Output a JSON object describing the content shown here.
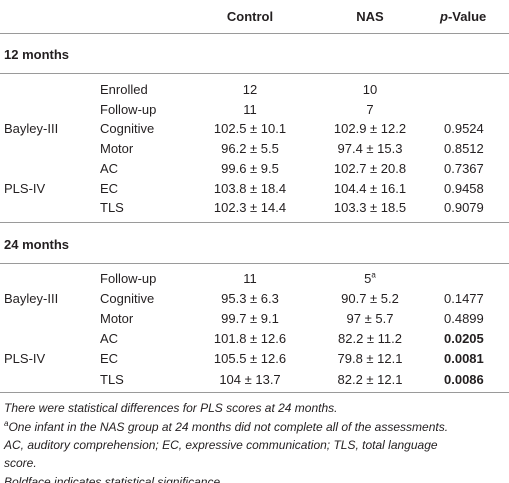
{
  "header": {
    "control": "Control",
    "nas": "NAS",
    "p_italic": "p",
    "p_rest": "-Value"
  },
  "sections": [
    {
      "title": "12 months",
      "rows": [
        {
          "measure": "Enrolled",
          "control": "12",
          "nas": "10"
        },
        {
          "measure": "Follow-up",
          "control": "11",
          "nas": "7"
        },
        {
          "group": "Bayley-III",
          "measure": "Cognitive",
          "control": "102.5 ± 10.1",
          "nas": "102.9 ± 12.2",
          "p": "0.9524",
          "significant": false
        },
        {
          "measure": "Motor",
          "control": "96.2 ± 5.5",
          "nas": "97.4 ± 15.3",
          "p": "0.8512",
          "significant": false
        },
        {
          "measure": "AC",
          "control": "99.6 ± 9.5",
          "nas": "102.7 ± 20.8",
          "p": "0.7367",
          "significant": false
        },
        {
          "group": "PLS-IV",
          "measure": "EC",
          "control": "103.8 ± 18.4",
          "nas": "104.4 ± 16.1",
          "p": "0.9458",
          "significant": false
        },
        {
          "measure": "TLS",
          "control": "102.3 ± 14.4",
          "nas": "103.3 ± 18.5",
          "p": "0.9079",
          "significant": false
        }
      ]
    },
    {
      "title": "24 months",
      "rows": [
        {
          "measure": "Follow-up",
          "control": "11",
          "nas": "5",
          "nas_sup": "a"
        },
        {
          "group": "Bayley-III",
          "measure": "Cognitive",
          "control": "95.3 ± 6.3",
          "nas": "90.7 ± 5.2",
          "p": "0.1477",
          "significant": false
        },
        {
          "measure": "Motor",
          "control": "99.7 ± 9.1",
          "nas": "97 ± 5.7",
          "p": "0.4899",
          "significant": false
        },
        {
          "measure": "AC",
          "control": "101.8 ± 12.6",
          "nas": "82.2 ± 11.2",
          "p": "0.0205",
          "significant": true
        },
        {
          "group": "PLS-IV",
          "measure": "EC",
          "control": "105.5 ± 12.6",
          "nas": "79.8 ± 12.1",
          "p": "0.0081",
          "significant": true
        },
        {
          "measure": "TLS",
          "control": "104 ± 13.7",
          "nas": "82.2 ± 12.1",
          "p": "0.0086",
          "significant": true
        }
      ]
    }
  ],
  "footnotes": [
    {
      "text": "There were statistical differences for PLS scores at 24 months."
    },
    {
      "sup": "a",
      "text": "One infant in the NAS group at 24 months did not complete all of the assessments."
    },
    {
      "text": "AC, auditory comprehension; EC, expressive communication; TLS, total language"
    },
    {
      "text": "score."
    },
    {
      "text": "Boldface indicates statistical significance."
    }
  ]
}
